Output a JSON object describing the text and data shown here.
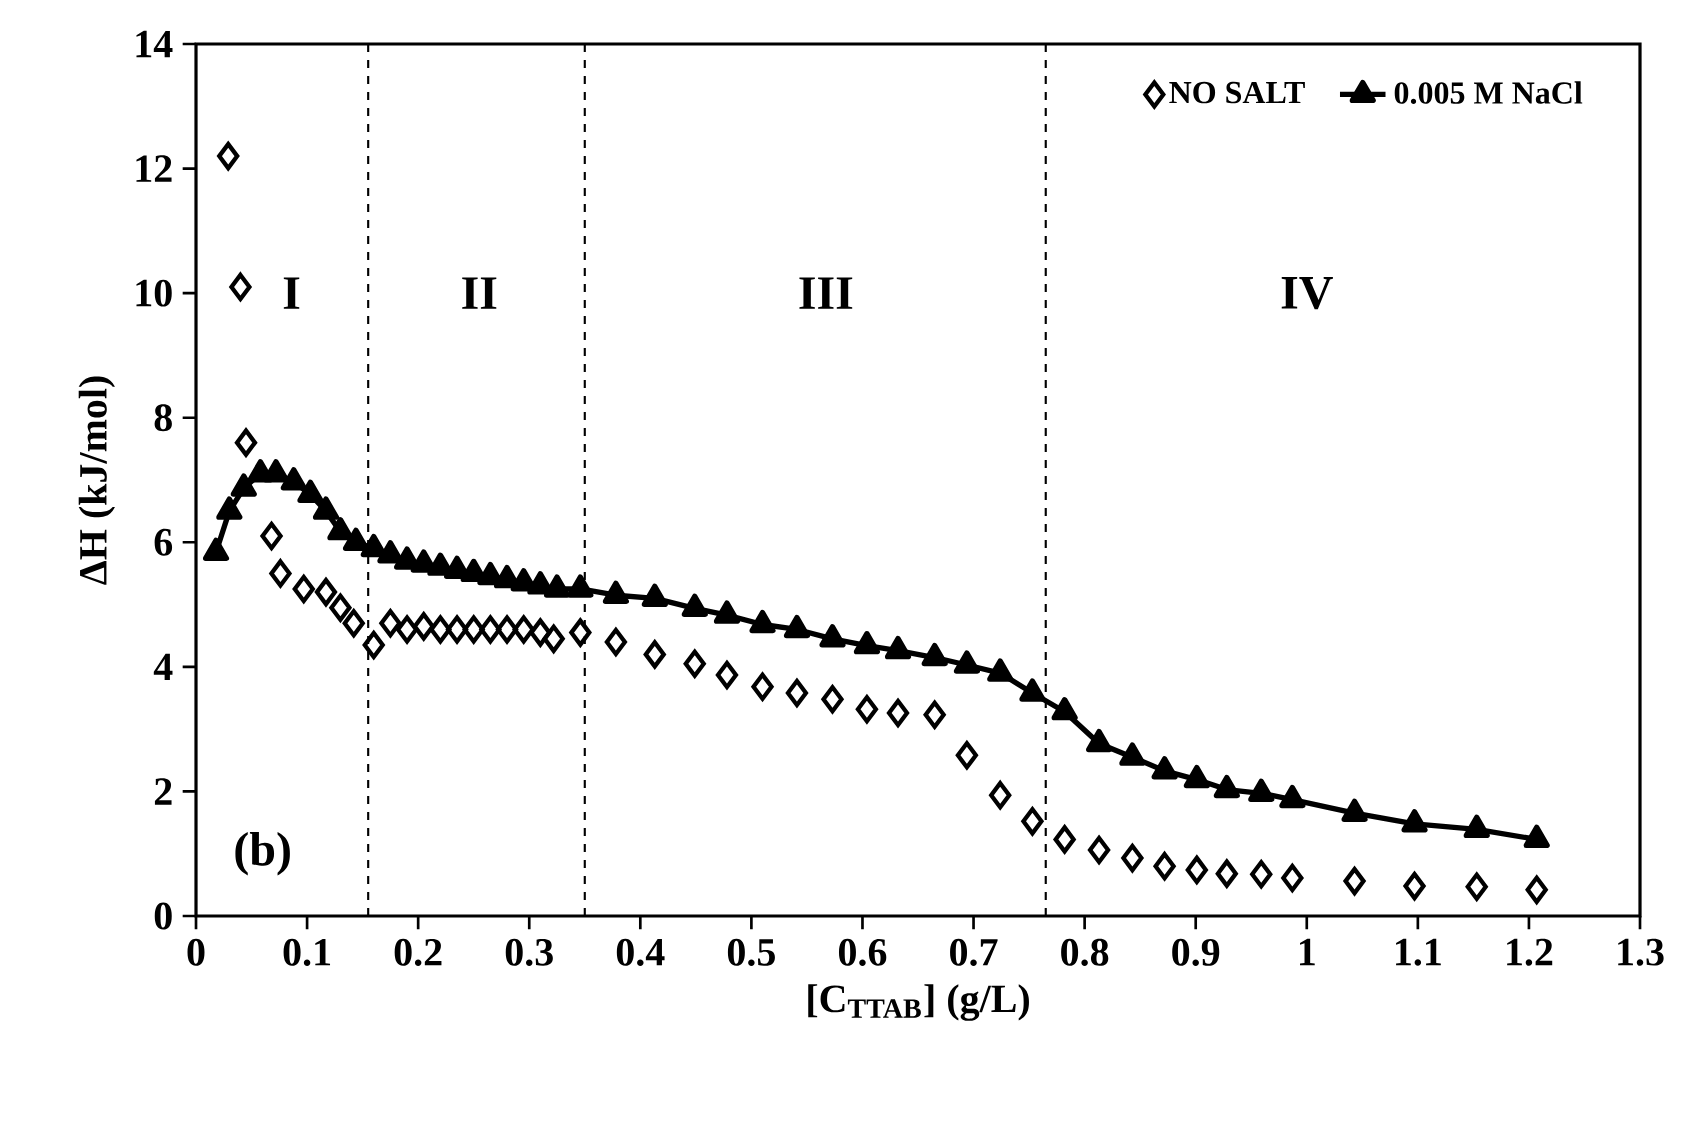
{
  "chart_data": {
    "type": "line",
    "xlabel": "[C$_{TTAB}$] (g/L)",
    "ylabel": "ΔH (kJ/mol)",
    "xlim": [
      0,
      1.3
    ],
    "ylim": [
      0,
      14
    ],
    "xticks": [
      0,
      0.1,
      0.2,
      0.3,
      0.4,
      0.5,
      0.6,
      0.7,
      0.8,
      0.9,
      {
        "value": 1,
        "label": "1"
      },
      1.1,
      1.2,
      1.3
    ],
    "yticks": [
      0,
      2,
      4,
      6,
      8,
      10,
      12,
      14
    ],
    "legend": "top right",
    "grid": false,
    "ref_lines": [
      {
        "axis": "x",
        "value": 0.155,
        "line_style": "dashed",
        "color": "#000000"
      },
      {
        "axis": "x",
        "value": 0.35,
        "line_style": "dashed",
        "color": "#000000"
      },
      {
        "axis": "x",
        "value": 0.765,
        "line_style": "dashed",
        "color": "#000000"
      }
    ],
    "annotations": [
      "I",
      "II",
      "III",
      "IV",
      "(b)"
    ],
    "series": [
      {
        "name": "NO SALT",
        "type": "scatter",
        "marker": "diamond",
        "color": "#000000",
        "x": [
          0.029,
          0.04,
          0.045,
          0.068,
          0.076,
          0.097,
          0.117,
          0.13,
          0.142,
          0.16,
          0.175,
          0.19,
          0.205,
          0.22,
          0.235,
          0.25,
          0.265,
          0.28,
          0.295,
          0.31,
          0.322,
          0.346,
          0.378,
          0.413,
          0.449,
          0.478,
          0.51,
          0.541,
          0.573,
          0.604,
          0.632,
          0.665,
          0.694,
          0.724,
          0.753,
          0.782,
          0.813,
          0.843,
          0.872,
          0.901,
          0.928,
          0.959,
          0.987,
          1.043,
          1.097,
          1.153,
          1.207
        ],
        "values": [
          12.2,
          10.1,
          7.6,
          6.1,
          5.5,
          5.25,
          5.2,
          4.95,
          4.7,
          4.35,
          4.7,
          4.6,
          4.65,
          4.6,
          4.6,
          4.6,
          4.6,
          4.6,
          4.6,
          4.55,
          4.45,
          4.55,
          4.4,
          4.2,
          4.05,
          3.87,
          3.68,
          3.58,
          3.48,
          3.32,
          3.26,
          3.23,
          2.58,
          1.94,
          1.52,
          1.23,
          1.06,
          0.93,
          0.8,
          0.74,
          0.68,
          0.67,
          0.61,
          0.56,
          0.48,
          0.47,
          0.42
        ]
      },
      {
        "name": "0.005 M NaCl",
        "marker": "triangle",
        "line_style": "solid",
        "color": "#000000",
        "x": [
          0.018,
          0.03,
          0.043,
          0.058,
          0.072,
          0.088,
          0.103,
          0.117,
          0.13,
          0.144,
          0.16,
          0.175,
          0.19,
          0.205,
          0.22,
          0.235,
          0.25,
          0.265,
          0.28,
          0.295,
          0.31,
          0.325,
          0.346,
          0.378,
          0.413,
          0.449,
          0.478,
          0.51,
          0.541,
          0.573,
          0.604,
          0.632,
          0.665,
          0.694,
          0.724,
          0.753,
          0.782,
          0.813,
          0.843,
          0.872,
          0.901,
          0.928,
          0.959,
          0.987,
          1.043,
          1.097,
          1.153,
          1.207
        ],
        "values": [
          5.84,
          6.5,
          6.87,
          7.1,
          7.1,
          6.97,
          6.77,
          6.5,
          6.17,
          6.0,
          5.9,
          5.8,
          5.7,
          5.65,
          5.6,
          5.55,
          5.5,
          5.45,
          5.4,
          5.35,
          5.3,
          5.25,
          5.25,
          5.15,
          5.1,
          4.94,
          4.83,
          4.68,
          4.6,
          4.45,
          4.34,
          4.26,
          4.15,
          4.03,
          3.9,
          3.58,
          3.28,
          2.77,
          2.55,
          2.33,
          2.19,
          2.03,
          1.97,
          1.87,
          1.65,
          1.48,
          1.39,
          1.23
        ]
      }
    ]
  }
}
